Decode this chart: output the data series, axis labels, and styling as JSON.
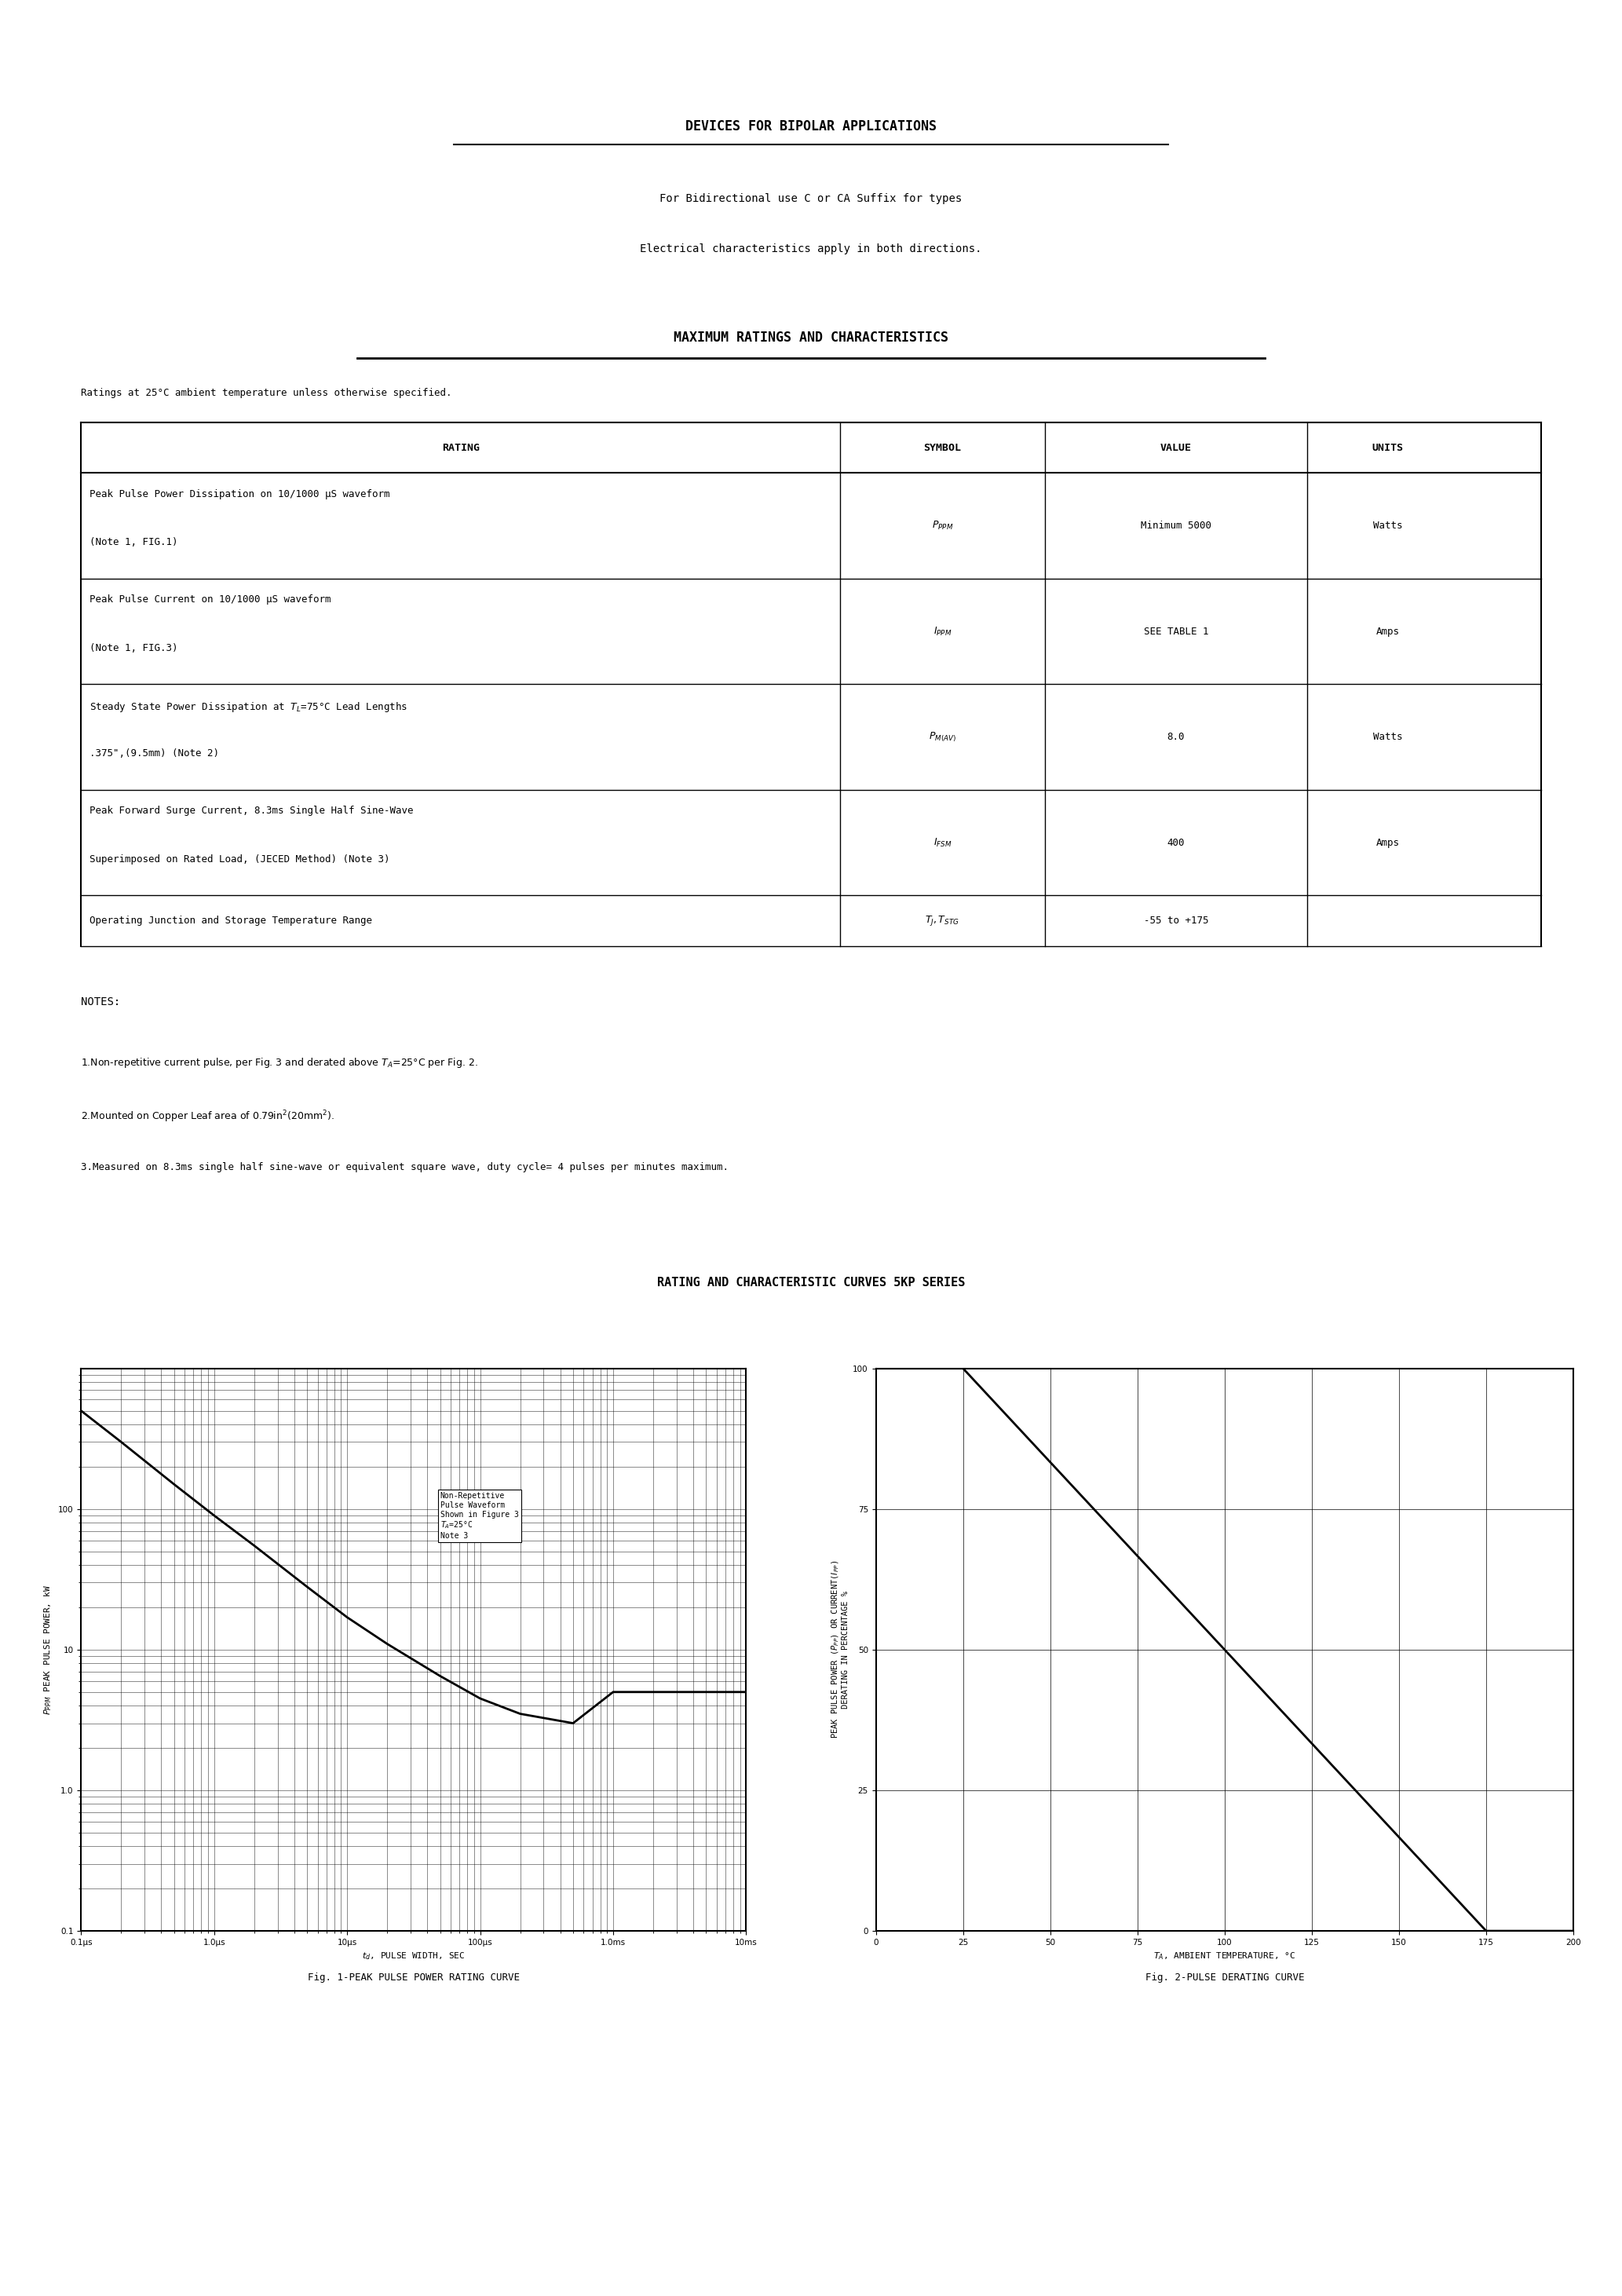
{
  "title1": "DEVICES FOR BIPOLAR APPLICATIONS",
  "subtitle1": "For Bidirectional use C or CA Suffix for types",
  "subtitle2": "Electrical characteristics apply in both directions.",
  "title2": "MAXIMUM RATINGS AND CHARACTERISTICS",
  "table_note": "Ratings at 25°C ambient temperature unless otherwise specified.",
  "table_headers": [
    "RATING",
    "SYMBOL",
    "VALUE",
    "UNITS"
  ],
  "table_rows": [
    [
      "Peak Pulse Power Dissipation on 10/1000 µS waveform\n(Note 1, FIG.1)",
      "$P_{PPM}$",
      "Minimum 5000",
      "Watts"
    ],
    [
      "Peak Pulse Current on 10/1000 µS waveform\n(Note 1, FIG.3)",
      "$I_{PPM}$",
      "SEE TABLE 1",
      "Amps"
    ],
    [
      "Steady State Power Dissipation at $T_L$=75°C Lead Lengths\n.375\",(9.5mm) (Note 2)",
      "$P_{M(AV)}$",
      "8.0",
      "Watts"
    ],
    [
      "Peak Forward Surge Current, 8.3ms Single Half Sine-Wave\nSuperimposed on Rated Load, (JECED Method) (Note 3)",
      "$I_{FSM}$",
      "400",
      "Amps"
    ],
    [
      "Operating Junction and Storage Temperature Range",
      "$T_J,T_{STG}$",
      "-55 to +175",
      ""
    ]
  ],
  "notes_title": "NOTES:",
  "note1": "1.Non-repetitive current pulse, per Fig. 3 and derated above $T_A$=25°C per Fig. 2.",
  "note2": "2.Mounted on Copper Leaf area of 0.79in$^2$(20mm$^2$).",
  "note3": "3.Measured on 8.3ms single half sine-wave or equivalent square wave, duty cycle= 4 pulses per minutes maximum.",
  "curves_title": "RATING AND CHARACTERISTIC CURVES 5KP SERIES",
  "fig1_caption": "Fig. 1-PEAK PULSE POWER RATING CURVE",
  "fig2_caption": "Fig. 2-PULSE DERATING CURVE",
  "bg_color": "#ffffff",
  "text_color": "#000000"
}
